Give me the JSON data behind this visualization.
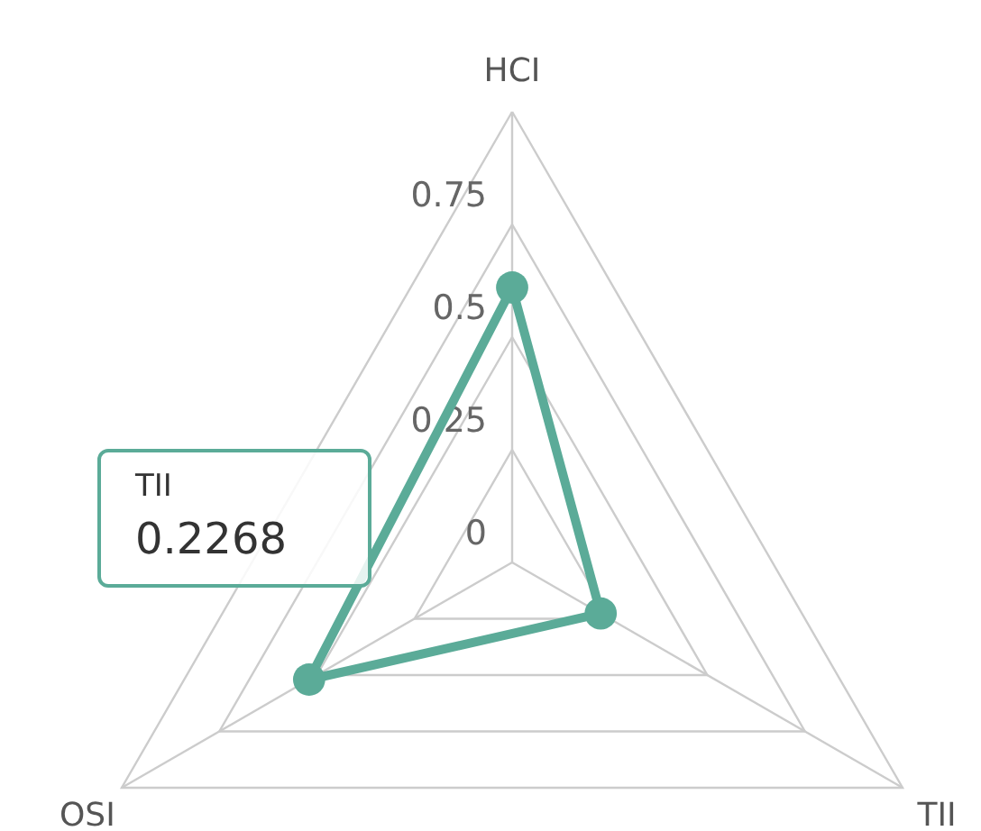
{
  "chart_data": {
    "type": "radar",
    "categories": [
      "HCI",
      "TII",
      "OSI"
    ],
    "series": [
      {
        "color": "#5bab98",
        "values": [
          0.61,
          0.2268,
          0.52
        ]
      }
    ],
    "ylim": [
      0,
      1
    ],
    "yticks": [
      0,
      0.25,
      0.5,
      0.75
    ],
    "grid": true,
    "marker": "circle",
    "line_style": "solid",
    "annotations": [
      "TII",
      "0.2268"
    ]
  }
}
